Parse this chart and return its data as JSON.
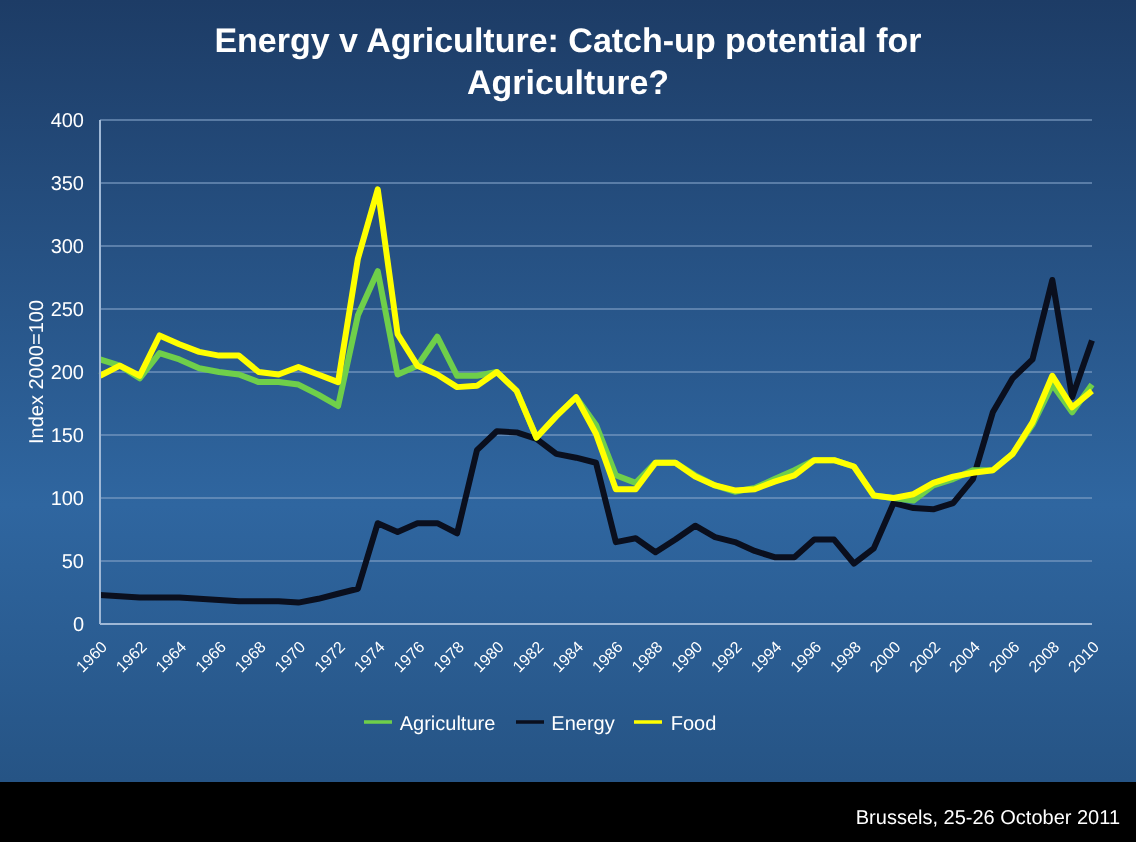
{
  "chart_data": {
    "type": "line",
    "title": "Energy v Agriculture: Catch-up potential  for Agriculture?",
    "ylabel": "Index 2000=100",
    "categories": [
      "1960",
      null,
      "1962",
      null,
      "1964",
      null,
      "1966",
      null,
      "1968",
      null,
      "1970",
      null,
      "1972",
      null,
      "1974",
      null,
      "1976",
      null,
      "1978",
      null,
      "1980",
      null,
      "1982",
      null,
      "1984",
      null,
      "1986",
      null,
      "1988",
      null,
      "1990",
      null,
      "1992",
      null,
      "1994",
      null,
      "1996",
      null,
      "1998",
      null,
      "2000",
      null,
      "2002",
      null,
      "2004",
      null,
      "2006",
      null,
      "2008",
      null,
      "2010"
    ],
    "series": [
      {
        "name": "Energy",
        "color": "#0a0f1e",
        "values": [
          23,
          22,
          21,
          21,
          21,
          20,
          19,
          18,
          18,
          18,
          17,
          20,
          24,
          28,
          80,
          73,
          80,
          80,
          72,
          138,
          153,
          152,
          147,
          135,
          132,
          128,
          65,
          68,
          57,
          67,
          78,
          69,
          65,
          58,
          53,
          53,
          67,
          67,
          48,
          60,
          96,
          92,
          91,
          96,
          115,
          168,
          195,
          210,
          273,
          180,
          225
        ]
      },
      {
        "name": "Agriculture",
        "color": "#6fcf4a",
        "values": [
          210,
          205,
          195,
          215,
          210,
          203,
          200,
          198,
          192,
          192,
          190,
          182,
          173,
          245,
          280,
          198,
          205,
          228,
          197,
          197,
          200,
          185,
          148,
          165,
          180,
          158,
          118,
          112,
          128,
          128,
          118,
          110,
          105,
          108,
          115,
          122,
          130,
          130,
          125,
          102,
          100,
          98,
          110,
          115,
          122,
          122,
          135,
          158,
          190,
          168,
          190
        ]
      },
      {
        "name": "Food",
        "color": "#ffff00",
        "values": [
          197,
          205,
          197,
          229,
          222,
          216,
          213,
          213,
          200,
          198,
          204,
          198,
          192,
          290,
          345,
          230,
          205,
          198,
          188,
          189,
          200,
          185,
          148,
          165,
          180,
          151,
          107,
          107,
          128,
          128,
          117,
          110,
          106,
          107,
          113,
          118,
          130,
          130,
          125,
          102,
          100,
          103,
          112,
          117,
          120,
          122,
          135,
          160,
          197,
          172,
          185
        ]
      }
    ],
    "ylim": [
      0,
      400
    ],
    "yticks": [
      0,
      50,
      100,
      150,
      200,
      250,
      300,
      350,
      400
    ],
    "grid": "y",
    "legend": "bottom",
    "marker": "none",
    "line_style": "solid",
    "annotations": [
      "Brussels, 25-26 October 2011"
    ]
  }
}
